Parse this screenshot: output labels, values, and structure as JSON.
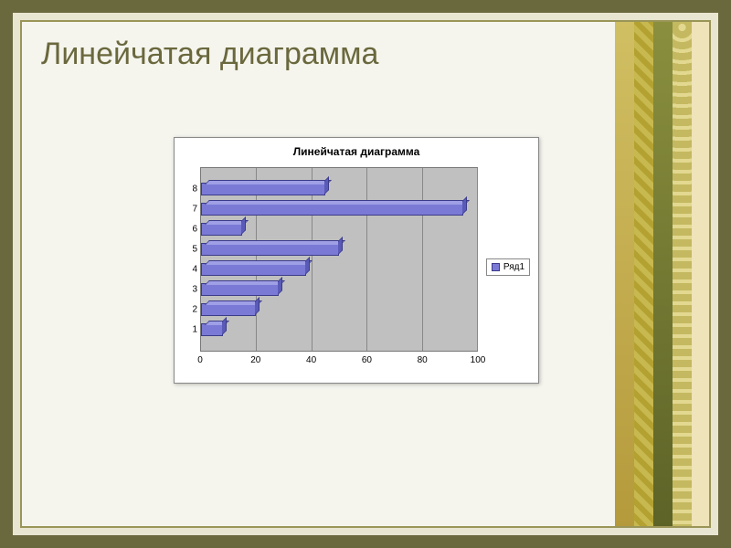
{
  "slide": {
    "title": "Линейчатая диаграмма",
    "title_color": "#6a683d",
    "title_fontsize": 34,
    "background_color": "#f5f5ee",
    "frame_outer_color": "#6a683d",
    "frame_inner_color": "#e8e6d0"
  },
  "chart": {
    "type": "bar-horizontal-3d",
    "title": "Линейчатая диаграмма",
    "title_fontsize": 12,
    "plot_background": "#c0c0c0",
    "chart_background": "#ffffff",
    "grid_color": "#888888",
    "bar_fill": "#7a7ad6",
    "bar_top_face": "#9f9fe6",
    "bar_side_face": "#5a5ab8",
    "bar_border": "#3b3b8a",
    "series_name": "Ряд1",
    "xlim": [
      0,
      100
    ],
    "xtick_step": 20,
    "xticks": [
      0,
      20,
      40,
      60,
      80,
      100
    ],
    "categories": [
      "1",
      "2",
      "3",
      "4",
      "5",
      "6",
      "7",
      "8"
    ],
    "values": [
      8,
      20,
      28,
      38,
      50,
      15,
      95,
      45
    ],
    "label_fontsize": 10,
    "legend_position": "right"
  }
}
